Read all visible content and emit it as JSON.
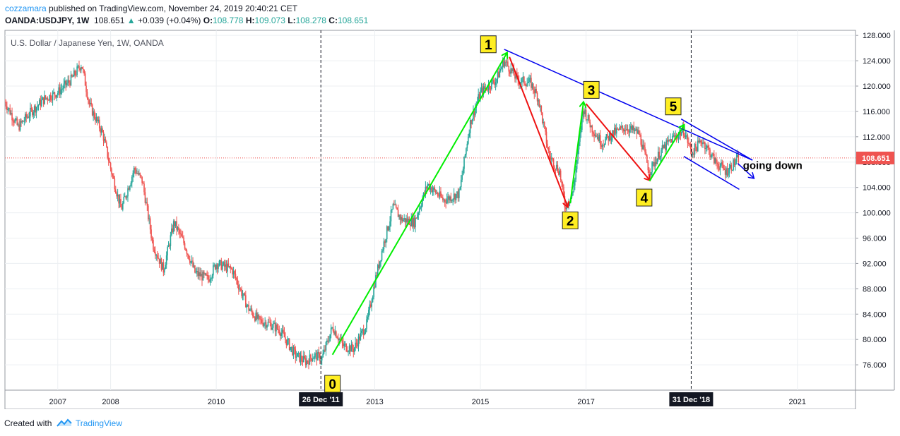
{
  "header": {
    "author": "cozzamara",
    "published": "published on TradingView.com, November 24, 2019 20:40:21 CET",
    "symbol": "OANDA:USDJPY, 1W",
    "last_price": "108.651",
    "change": "+0.039 (+0.04%)",
    "ohlc": [
      {
        "label": "O:",
        "value": "108.778"
      },
      {
        "label": "H:",
        "value": "109.073"
      },
      {
        "label": "L:",
        "value": "108.278"
      },
      {
        "label": "C:",
        "value": "108.651"
      }
    ]
  },
  "footer": {
    "created_with": "Created with",
    "brand": "TradingView"
  },
  "colors": {
    "up": "#26a69a",
    "down": "#ef5350",
    "green": "#00ee00",
    "red": "#ee1111",
    "blue": "#0000ee",
    "badge": "#ffee22",
    "price_line": "#ef5350"
  },
  "chart_data": {
    "type": "line",
    "title": "U.S. Dollar / Japanese Yen, 1W, OANDA",
    "series": [
      {
        "name": "USDJPY weekly close (approx.)",
        "x": [
          2006.0,
          2006.25,
          2006.5,
          2006.75,
          2007.0,
          2007.25,
          2007.45,
          2007.6,
          2007.85,
          2008.0,
          2008.2,
          2008.45,
          2008.6,
          2008.8,
          2009.0,
          2009.2,
          2009.4,
          2009.6,
          2009.85,
          2010.0,
          2010.3,
          2010.6,
          2010.8,
          2011.0,
          2011.2,
          2011.5,
          2011.7,
          2011.85,
          2012.0,
          2012.2,
          2012.4,
          2012.6,
          2012.85,
          2013.0,
          2013.15,
          2013.35,
          2013.5,
          2013.75,
          2014.0,
          2014.3,
          2014.6,
          2014.8,
          2015.0,
          2015.3,
          2015.45,
          2015.7,
          2015.95,
          2016.1,
          2016.3,
          2016.5,
          2016.6,
          2016.75,
          2016.95,
          2017.1,
          2017.3,
          2017.5,
          2017.75,
          2018.0,
          2018.2,
          2018.4,
          2018.6,
          2018.85,
          2019.0,
          2019.2,
          2019.45,
          2019.65,
          2019.9
        ],
        "values": [
          117.5,
          113.5,
          116.0,
          118.0,
          119.0,
          121.0,
          123.5,
          117.0,
          112.5,
          107.0,
          100.5,
          107.0,
          105.0,
          95.0,
          91.0,
          98.5,
          95.0,
          90.5,
          89.5,
          92.0,
          91.0,
          85.0,
          83.0,
          82.5,
          81.5,
          77.5,
          76.5,
          77.5,
          77.0,
          82.0,
          79.0,
          78.5,
          82.5,
          89.0,
          94.5,
          101.0,
          99.0,
          98.5,
          104.5,
          102.0,
          103.0,
          114.0,
          119.0,
          121.0,
          124.0,
          121.0,
          120.5,
          118.0,
          109.0,
          106.5,
          101.0,
          103.0,
          116.5,
          113.5,
          111.0,
          112.5,
          113.5,
          112.5,
          106.5,
          109.5,
          111.5,
          113.0,
          109.5,
          111.5,
          108.0,
          106.5,
          108.65
        ]
      }
    ],
    "xlim": [
      2006.0,
      2022.1
    ],
    "ylim": [
      72.0,
      128.8
    ],
    "x_ticks": [
      {
        "value": 2007.0,
        "label": "2007"
      },
      {
        "value": 2008.0,
        "label": "2008"
      },
      {
        "value": 2010.0,
        "label": "2010"
      },
      {
        "value": 2013.0,
        "label": "2013"
      },
      {
        "value": 2015.0,
        "label": "2015"
      },
      {
        "value": 2017.0,
        "label": "2017"
      },
      {
        "value": 2021.0,
        "label": "2021"
      }
    ],
    "y_ticks": [
      76.0,
      80.0,
      84.0,
      88.0,
      92.0,
      96.0,
      100.0,
      104.0,
      108.0,
      112.0,
      116.0,
      120.0,
      124.0,
      128.0
    ],
    "y_tick_labels": [
      "76.000",
      "80.000",
      "84.000",
      "88.000",
      "92.000",
      "96.000",
      "100.000",
      "104.000",
      "108.000",
      "112.000",
      "116.000",
      "120.000",
      "124.000",
      "128.000"
    ],
    "vertical_markers": [
      {
        "x": 2011.98,
        "label": "26 Dec '11"
      },
      {
        "x": 2018.99,
        "label": "31 Dec '18"
      }
    ],
    "last_price": {
      "value": 108.651,
      "label": "108.651"
    },
    "wave_labels": [
      {
        "label": "0",
        "x": 2012.2,
        "y": 73.0
      },
      {
        "label": "1",
        "x": 2015.15,
        "y": 126.6
      },
      {
        "label": "2",
        "x": 2016.7,
        "y": 98.8
      },
      {
        "label": "3",
        "x": 2017.1,
        "y": 119.4
      },
      {
        "label": "4",
        "x": 2018.1,
        "y": 102.4
      },
      {
        "label": "5",
        "x": 2018.65,
        "y": 116.8
      }
    ],
    "arrows": [
      {
        "color": "green",
        "from": [
          2012.2,
          77.6
        ],
        "to": [
          2015.5,
          125.2
        ]
      },
      {
        "color": "red",
        "from": [
          2015.55,
          124.6
        ],
        "to": [
          2016.65,
          101.0
        ]
      },
      {
        "color": "green",
        "from": [
          2016.7,
          101.5
        ],
        "to": [
          2016.95,
          117.4
        ]
      },
      {
        "color": "red",
        "from": [
          2017.0,
          117.2
        ],
        "to": [
          2018.2,
          105.2
        ]
      },
      {
        "color": "green",
        "from": [
          2018.2,
          105.0
        ],
        "to": [
          2018.85,
          113.8
        ]
      },
      {
        "color": "blue",
        "from": [
          2019.87,
          107.8
        ],
        "to": [
          2020.17,
          105.5
        ]
      }
    ],
    "trendlines": [
      {
        "color": "blue",
        "from": [
          2015.45,
          125.8
        ],
        "to": [
          2020.15,
          108.3
        ]
      },
      {
        "color": "blue",
        "from": [
          2018.8,
          114.8
        ],
        "to": [
          2020.15,
          108.3
        ]
      },
      {
        "color": "blue",
        "from": [
          2018.85,
          108.9
        ],
        "to": [
          2019.9,
          103.7
        ]
      }
    ],
    "annotations": [
      {
        "text": "going down",
        "x": 2019.97,
        "y": 106.9
      }
    ]
  }
}
